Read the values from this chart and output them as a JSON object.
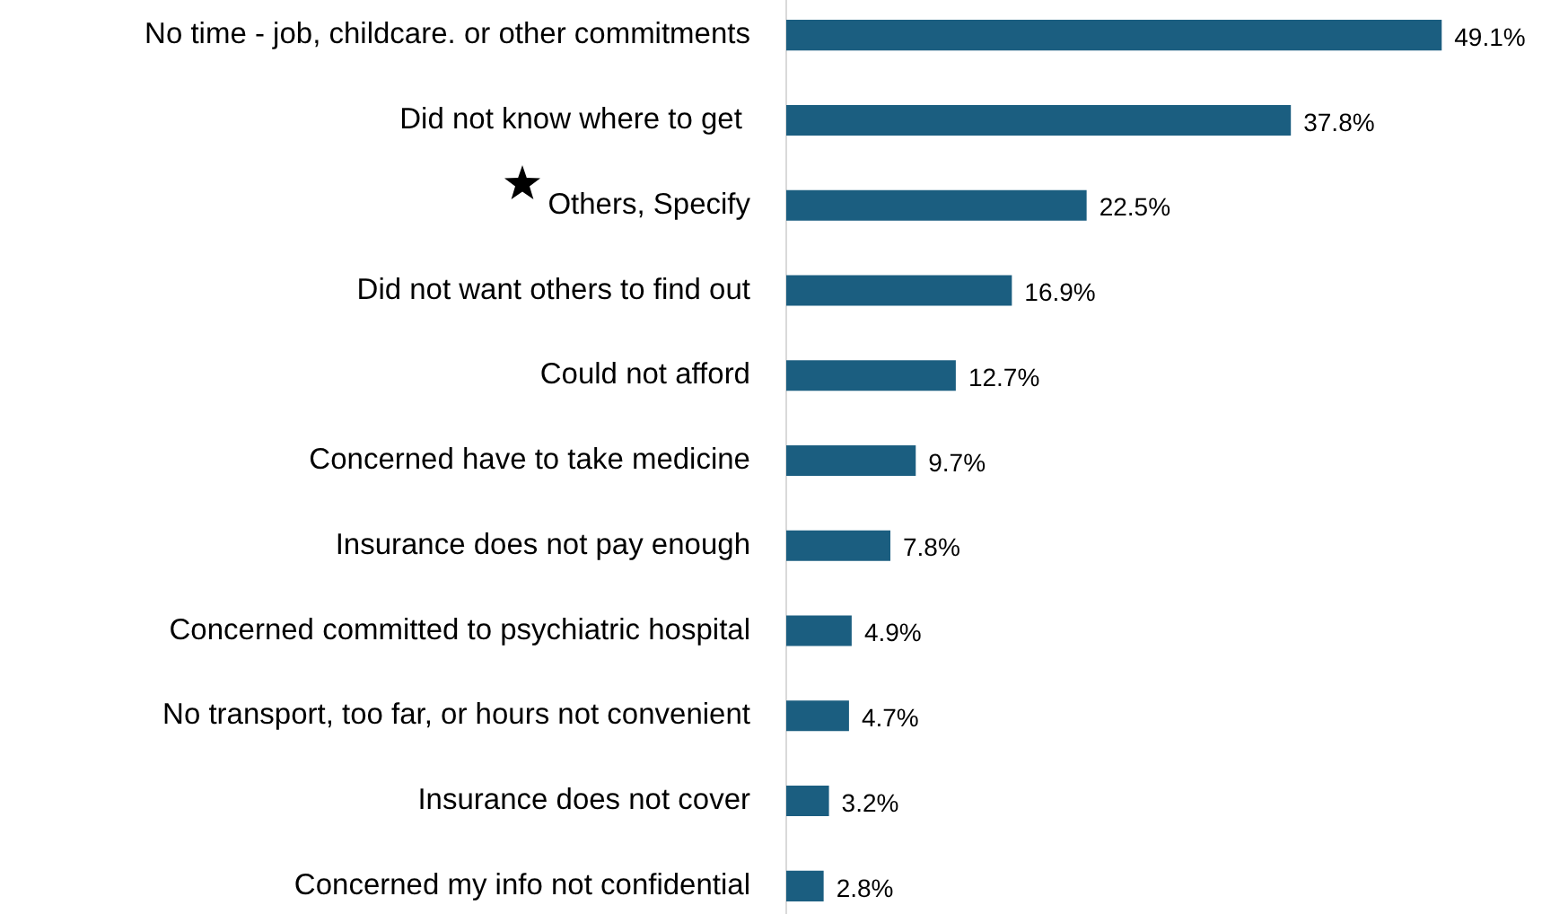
{
  "chart_data": {
    "type": "bar",
    "orientation": "horizontal",
    "categories": [
      "No time - job, childcare. or other commitments",
      "Did not know where to get ",
      "Others, Specify",
      "Did not want others to find out",
      "Could not afford",
      "Concerned have to take medicine",
      "Insurance does not pay enough",
      "Concerned committed to psychiatric hospital",
      "No transport, too far, or hours not convenient",
      "Insurance does not cover",
      "Concerned my info not confidential"
    ],
    "values": [
      49.1,
      37.8,
      22.5,
      16.9,
      12.7,
      9.7,
      7.8,
      4.9,
      4.7,
      3.2,
      2.8
    ],
    "value_labels": [
      "49.1%",
      "37.8%",
      "22.5%",
      "16.9%",
      "12.7%",
      "9.7%",
      "7.8%",
      "4.9%",
      "4.7%",
      "3.2%",
      "2.8%"
    ],
    "color": "#1b5e80",
    "grid": false,
    "legend": false,
    "tick_labels": "y"
  }
}
